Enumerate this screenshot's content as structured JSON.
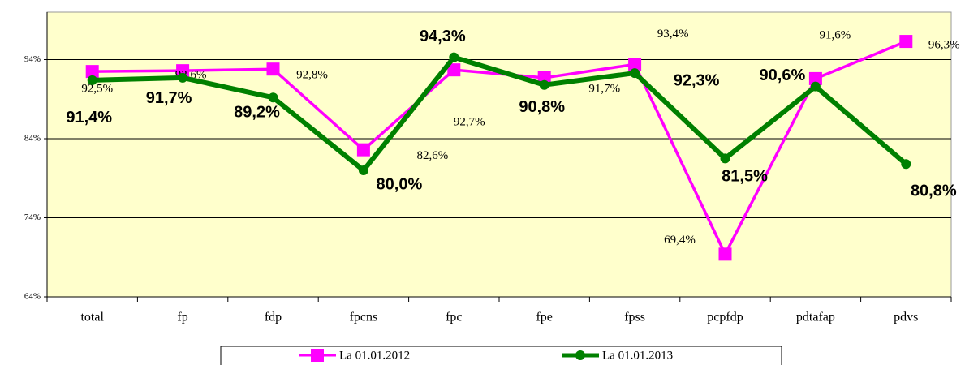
{
  "chart_data": {
    "type": "line",
    "categories": [
      "total",
      "fp",
      "fdp",
      "fpcns",
      "fpc",
      "fpe",
      "fpss",
      "pcpfdp",
      "pdtafap",
      "pdvs"
    ],
    "series": [
      {
        "name": "La 01.01.2012",
        "color": "#ff00ff",
        "values": [
          92.5,
          92.6,
          92.8,
          82.6,
          92.7,
          91.7,
          93.4,
          69.4,
          91.6,
          96.3
        ],
        "value_labels": [
          "92,5%",
          "92,6%",
          "92,8%",
          "82,6%",
          "92,7%",
          "91,7%",
          "93,4%",
          "69,4%",
          "91,6%",
          "96,3%"
        ]
      },
      {
        "name": "La 01.01.2013",
        "color": "#008000",
        "values": [
          91.4,
          91.7,
          89.2,
          80.0,
          94.3,
          90.8,
          92.3,
          81.5,
          90.6,
          80.8
        ],
        "value_labels": [
          "91,4%",
          "91,7%",
          "89,2%",
          "80,0%",
          "94,3%",
          "90,8%",
          "92,3%",
          "81,5%",
          "90,6%",
          "80,8%"
        ]
      }
    ],
    "ylim": [
      64,
      100
    ],
    "yticks": [
      {
        "value": 64,
        "label": "64%"
      },
      {
        "value": 74,
        "label": "74%"
      },
      {
        "value": 84,
        "label": "84%"
      },
      {
        "value": 94,
        "label": "94%"
      }
    ],
    "grid": true,
    "legend": "bottom"
  }
}
